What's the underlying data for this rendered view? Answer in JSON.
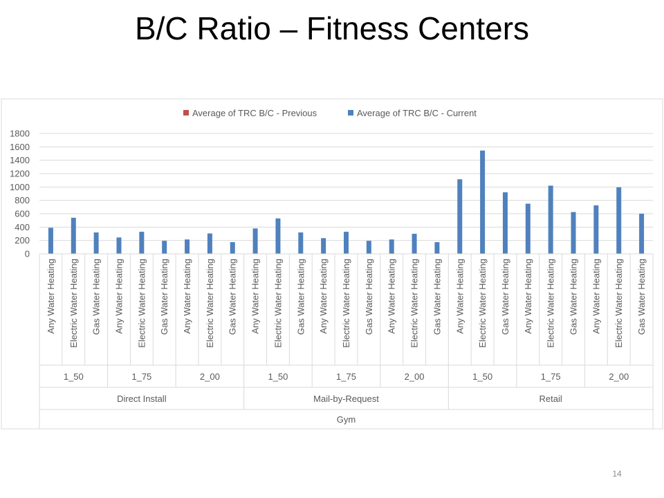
{
  "slide": {
    "title": "B/C Ratio – Fitness Centers",
    "page_number": "14"
  },
  "chart_data": {
    "type": "bar",
    "title": "",
    "xlabel": "",
    "ylabel": "",
    "ylim": [
      0,
      1800
    ],
    "yticks": [
      0,
      200,
      400,
      600,
      800,
      1000,
      1200,
      1400,
      1600,
      1800
    ],
    "grid": true,
    "legend_position": "top",
    "categories": [
      "Any Water Heating",
      "Electric Water Heating",
      "Gas Water Heating",
      "Any Water Heating",
      "Electric Water Heating",
      "Gas Water Heating",
      "Any Water Heating",
      "Electric Water Heating",
      "Gas Water Heating",
      "Any Water Heating",
      "Electric Water Heating",
      "Gas Water Heating",
      "Any Water Heating",
      "Electric Water Heating",
      "Gas Water Heating",
      "Any Water Heating",
      "Electric Water Heating",
      "Gas Water Heating",
      "Any Water Heating",
      "Electric Water Heating",
      "Gas Water Heating",
      "Any Water Heating",
      "Electric Water Heating",
      "Gas Water Heating",
      "Any Water Heating",
      "Electric Water Heating",
      "Gas Water Heating"
    ],
    "group_levels": [
      {
        "labels": [
          "1_50",
          "1_75",
          "2_00",
          "1_50",
          "1_75",
          "2_00",
          "1_50",
          "1_75",
          "2_00"
        ],
        "span": 3
      },
      {
        "labels": [
          "Direct Install",
          "Mail-by-Request",
          "Retail"
        ],
        "span": 9
      },
      {
        "labels": [
          "Gym"
        ],
        "span": 27
      }
    ],
    "series": [
      {
        "name": "Average of TRC B/C - Previous",
        "color": "#c0504d",
        "values": [
          0,
          0,
          0,
          0,
          0,
          0,
          0,
          0,
          0,
          0,
          0,
          0,
          0,
          0,
          0,
          0,
          0,
          0,
          0,
          0,
          0,
          0,
          0,
          0,
          0,
          0,
          0
        ]
      },
      {
        "name": "Average of TRC B/C - Current",
        "color": "#4f81bd",
        "values": [
          390,
          540,
          320,
          245,
          330,
          195,
          215,
          305,
          175,
          380,
          530,
          320,
          235,
          330,
          195,
          215,
          300,
          175,
          1115,
          1545,
          920,
          750,
          1020,
          625,
          725,
          995,
          600
        ]
      }
    ]
  }
}
